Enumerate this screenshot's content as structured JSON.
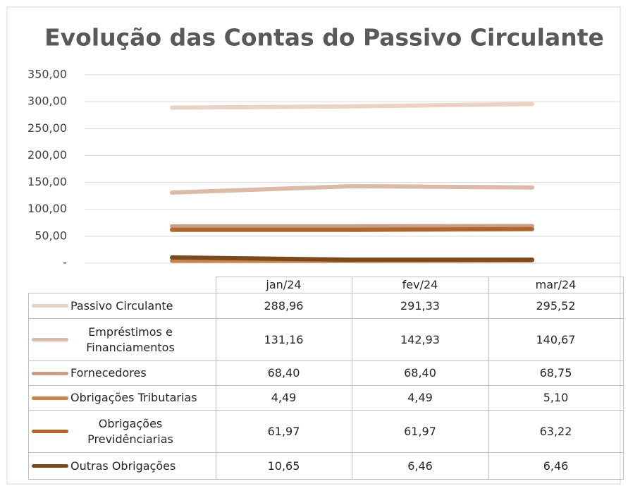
{
  "chart_data": {
    "type": "line",
    "title": "Evolução das  Contas do Passivo Circulante",
    "categories": [
      "jan/24",
      "fev/24",
      "mar/24"
    ],
    "series": [
      {
        "name": "Passivo Circulante",
        "color": "#ead3c5",
        "values": [
          288.96,
          291.33,
          295.52
        ],
        "value_labels": [
          "288,96",
          "291,33",
          "295,52"
        ]
      },
      {
        "name": "Empréstimos e Financiamentos",
        "color": "#dbbaa8",
        "values": [
          131.16,
          142.93,
          140.67
        ],
        "value_labels": [
          "131,16",
          "142,93",
          "140,67"
        ]
      },
      {
        "name": "Fornecedores",
        "color": "#c9a086",
        "values": [
          68.4,
          68.4,
          68.75
        ],
        "value_labels": [
          "68,40",
          "68,40",
          "68,75"
        ]
      },
      {
        "name": "Obrigações Tributarias",
        "color": "#c8834f",
        "values": [
          4.49,
          4.49,
          5.1
        ],
        "value_labels": [
          "4,49",
          "4,49",
          "5,10"
        ]
      },
      {
        "name": "Obrigações Previdênciarias",
        "color": "#b0662c",
        "values": [
          61.97,
          61.97,
          63.22
        ],
        "value_labels": [
          "61,97",
          "61,97",
          "63,22"
        ]
      },
      {
        "name": "Outras Obrigações",
        "color": "#7a4a1f",
        "values": [
          10.65,
          6.46,
          6.46
        ],
        "value_labels": [
          "10,65",
          "6,46",
          "6,46"
        ]
      }
    ],
    "ylim": [
      0,
      350
    ],
    "yticks": [
      {
        "value": 0,
        "label": "-"
      },
      {
        "value": 50,
        "label": "50,00"
      },
      {
        "value": 100,
        "label": "100,00"
      },
      {
        "value": 150,
        "label": "150,00"
      },
      {
        "value": 200,
        "label": "200,00"
      },
      {
        "value": 250,
        "label": "250,00"
      },
      {
        "value": 300,
        "label": "300,00"
      },
      {
        "value": 350,
        "label": "350,00"
      }
    ],
    "grid": true
  }
}
